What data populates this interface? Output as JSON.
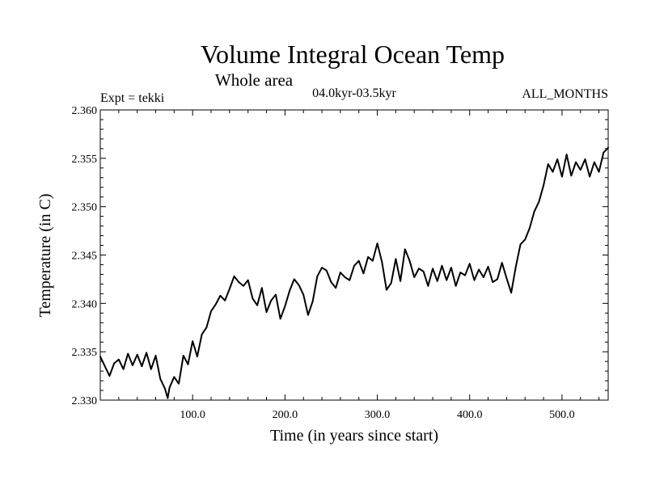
{
  "chart_data": {
    "type": "line",
    "title": "Volume Integral Ocean Temp",
    "subtitle": "Whole area",
    "period": "04.0kyr-03.5kyr",
    "experiment": "Expt = tekki",
    "months": "ALL_MONTHS",
    "xlabel": "Time (in years since start)",
    "ylabel": "Temperature (in C)",
    "xlim": [
      0,
      550
    ],
    "ylim": [
      2.33,
      2.36
    ],
    "xticks": [
      100,
      200,
      300,
      400,
      500
    ],
    "xtick_labels": [
      "100.0",
      "200.0",
      "300.0",
      "400.0",
      "500.0"
    ],
    "yticks": [
      2.33,
      2.335,
      2.34,
      2.345,
      2.35,
      2.355,
      2.36
    ],
    "ytick_labels": [
      "2.330",
      "2.335",
      "2.340",
      "2.345",
      "2.350",
      "2.355",
      "2.360"
    ],
    "series": [
      {
        "name": "Temperature",
        "color": "#000000",
        "x": [
          0,
          5,
          10,
          15,
          20,
          25,
          30,
          35,
          40,
          45,
          50,
          55,
          60,
          65,
          70,
          73,
          75,
          80,
          85,
          90,
          95,
          100,
          105,
          110,
          115,
          120,
          125,
          130,
          135,
          140,
          145,
          150,
          155,
          160,
          165,
          170,
          175,
          180,
          185,
          190,
          195,
          200,
          205,
          210,
          215,
          220,
          225,
          230,
          235,
          240,
          245,
          250,
          255,
          260,
          265,
          270,
          275,
          280,
          285,
          290,
          295,
          300,
          305,
          310,
          315,
          320,
          325,
          330,
          335,
          340,
          345,
          350,
          355,
          360,
          365,
          370,
          375,
          380,
          385,
          390,
          395,
          400,
          405,
          410,
          415,
          420,
          425,
          430,
          435,
          440,
          445,
          450,
          455,
          460,
          465,
          470,
          475,
          480,
          485,
          490,
          495,
          500,
          505,
          510,
          515,
          520,
          525,
          530,
          535,
          540,
          545,
          550
        ],
        "values": [
          2.3345,
          2.3335,
          2.3325,
          2.3338,
          2.3342,
          2.3332,
          2.3348,
          2.3336,
          2.3347,
          2.3335,
          2.3349,
          2.3332,
          2.3346,
          2.3322,
          2.3312,
          2.3302,
          2.3313,
          2.3324,
          2.3317,
          2.3346,
          2.3337,
          2.3361,
          2.3345,
          2.3368,
          2.3375,
          2.3392,
          2.3399,
          2.3408,
          2.3403,
          2.3415,
          2.3428,
          2.3422,
          2.3418,
          2.3424,
          2.3405,
          2.3398,
          2.3416,
          2.3391,
          2.3403,
          2.3409,
          2.3384,
          2.3397,
          2.3413,
          2.3425,
          2.3419,
          2.3409,
          2.3388,
          2.3402,
          2.3428,
          2.3437,
          2.3434,
          2.3422,
          2.3416,
          2.3432,
          2.3427,
          2.3424,
          2.3439,
          2.3444,
          2.3431,
          2.3448,
          2.3444,
          2.3462,
          2.3443,
          2.3414,
          2.3421,
          2.3446,
          2.3423,
          2.3456,
          2.3444,
          2.3427,
          2.3436,
          2.3433,
          2.3418,
          2.3436,
          2.3423,
          2.3439,
          2.3424,
          2.3437,
          2.3418,
          2.3432,
          2.3429,
          2.3441,
          2.3424,
          2.3435,
          2.3427,
          2.3438,
          2.3422,
          2.3425,
          2.3442,
          2.3426,
          2.3411,
          2.3438,
          2.3461,
          2.3466,
          2.3478,
          2.3495,
          2.3505,
          2.3522,
          2.3544,
          2.3536,
          2.3549,
          2.3531,
          2.3554,
          2.3532,
          2.3546,
          2.3538,
          2.3549,
          2.3531,
          2.3546,
          2.3536,
          2.3556,
          2.3561
        ]
      }
    ]
  }
}
